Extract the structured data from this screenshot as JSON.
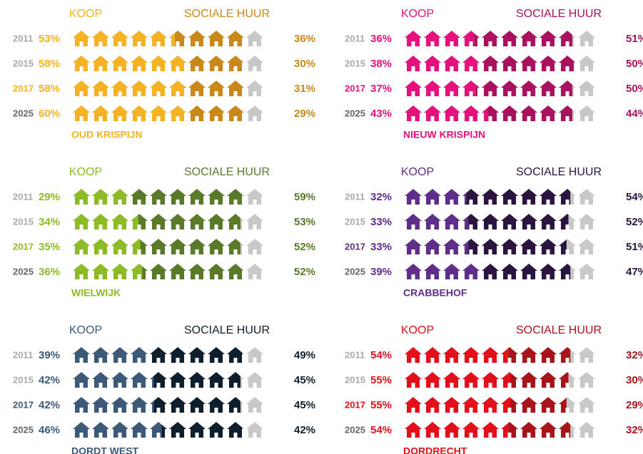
{
  "chart_data": [
    {
      "type": "pictograph",
      "title": "OUD KRISPIJN",
      "categories": [
        "2011",
        "2015",
        "2017",
        "2025"
      ],
      "category_colors": [
        "#aaaaaa",
        "#aaaaaa",
        "#f5b323",
        "#666666"
      ],
      "rest_color": "#c8c8c8",
      "series": [
        {
          "name": "KOOP",
          "color": "#f5b323",
          "values": [
            53,
            58,
            58,
            60
          ],
          "value_labels": [
            "53%",
            "58%",
            "58%",
            "60%"
          ]
        },
        {
          "name": "SOCIALE HUUR",
          "color": "#c8881a",
          "values": [
            36,
            30,
            31,
            29
          ],
          "value_labels": [
            "36%",
            "30%",
            "31%",
            "29%"
          ]
        }
      ]
    },
    {
      "type": "pictograph",
      "title": "NIEUW KRISPIJN",
      "categories": [
        "2011",
        "2015",
        "2017",
        "2025"
      ],
      "category_colors": [
        "#aaaaaa",
        "#aaaaaa",
        "#e5127d",
        "#666666"
      ],
      "rest_color": "#c8c8c8",
      "series": [
        {
          "name": "KOOP",
          "color": "#e5127d",
          "values": [
            36,
            38,
            37,
            43
          ],
          "value_labels": [
            "36%",
            "38%",
            "37%",
            "43%"
          ]
        },
        {
          "name": "SOCIALE HUUR",
          "color": "#a8125f",
          "values": [
            51,
            50,
            50,
            44
          ],
          "value_labels": [
            "51%",
            "50%",
            "50%",
            "44%"
          ]
        }
      ]
    },
    {
      "type": "pictograph",
      "title": "WIELWIJK",
      "categories": [
        "2011",
        "2015",
        "2017",
        "2025"
      ],
      "category_colors": [
        "#aaaaaa",
        "#aaaaaa",
        "#8dbb25",
        "#666666"
      ],
      "rest_color": "#c8c8c8",
      "series": [
        {
          "name": "KOOP",
          "color": "#8dbb25",
          "values": [
            29,
            34,
            35,
            36
          ],
          "value_labels": [
            "29%",
            "34%",
            "35%",
            "36%"
          ]
        },
        {
          "name": "SOCIALE HUUR",
          "color": "#5a7a2a",
          "values": [
            59,
            53,
            52,
            52
          ],
          "value_labels": [
            "59%",
            "53%",
            "52%",
            "52%"
          ]
        }
      ]
    },
    {
      "type": "pictograph",
      "title": "CRABBEHOF",
      "categories": [
        "2011",
        "2015",
        "2017",
        "2025"
      ],
      "category_colors": [
        "#aaaaaa",
        "#aaaaaa",
        "#5f2d8a",
        "#666666"
      ],
      "rest_color": "#c8c8c8",
      "series": [
        {
          "name": "KOOP",
          "color": "#5f2d8a",
          "values": [
            32,
            33,
            33,
            39
          ],
          "value_labels": [
            "32%",
            "33%",
            "33%",
            "39%"
          ]
        },
        {
          "name": "SOCIALE HUUR",
          "color": "#2a1540",
          "values": [
            54,
            52,
            51,
            47
          ],
          "value_labels": [
            "54%",
            "52%",
            "51%",
            "47%"
          ]
        }
      ]
    },
    {
      "type": "pictograph",
      "title": "DORDT WEST",
      "categories": [
        "2011",
        "2015",
        "2017",
        "2025"
      ],
      "category_colors": [
        "#aaaaaa",
        "#aaaaaa",
        "#3c5a78",
        "#666666"
      ],
      "rest_color": "#c8c8c8",
      "series": [
        {
          "name": "KOOP",
          "color": "#3c5a78",
          "values": [
            39,
            42,
            42,
            46
          ],
          "value_labels": [
            "39%",
            "42%",
            "42%",
            "46%"
          ]
        },
        {
          "name": "SOCIALE HUUR",
          "color": "#0f1e2c",
          "values": [
            49,
            45,
            45,
            42
          ],
          "value_labels": [
            "49%",
            "45%",
            "45%",
            "42%"
          ]
        }
      ]
    },
    {
      "type": "pictograph",
      "title": "DORDRECHT",
      "categories": [
        "2011",
        "2015",
        "2017",
        "2025"
      ],
      "category_colors": [
        "#aaaaaa",
        "#aaaaaa",
        "#e3101b",
        "#666666"
      ],
      "rest_color": "#c8c8c8",
      "series": [
        {
          "name": "KOOP",
          "color": "#e3101b",
          "values": [
            54,
            55,
            55,
            54
          ],
          "value_labels": [
            "54%",
            "55%",
            "55%",
            "54%"
          ]
        },
        {
          "name": "SOCIALE HUUR",
          "color": "#a8141a",
          "values": [
            32,
            30,
            29,
            32
          ],
          "value_labels": [
            "32%",
            "30%",
            "29%",
            "32%"
          ]
        }
      ]
    }
  ]
}
